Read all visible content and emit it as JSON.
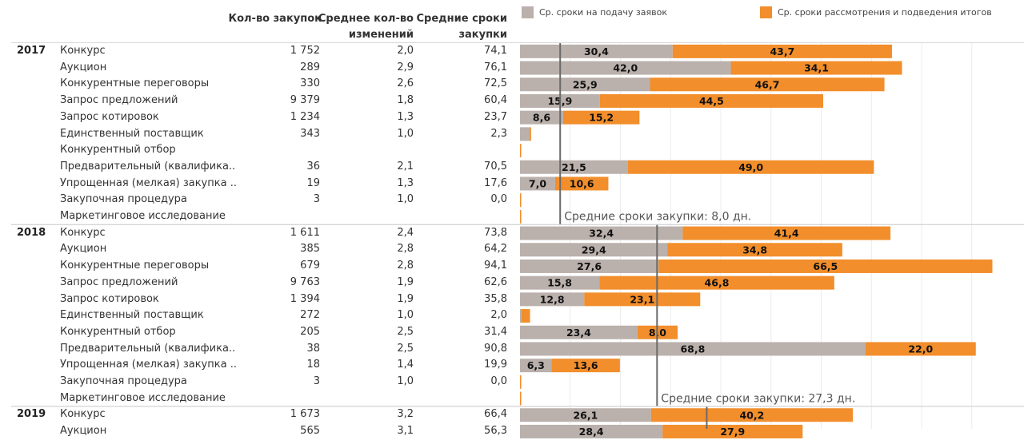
{
  "headers": {
    "count": [
      "Кол-во закупок"
    ],
    "changes": [
      "Среднее кол-во",
      "изменений"
    ],
    "duration": [
      "Средние сроки",
      "закупки"
    ]
  },
  "legend": [
    {
      "label": "Ср. сроки на подачу заявок",
      "color": "#bab0ac"
    },
    {
      "label": "Ср. сроки рассмотрения и подведения итогов",
      "color": "#f28e2b"
    }
  ],
  "chart_data": {
    "type": "bar",
    "orientation": "horizontal",
    "stacked": true,
    "series_names": [
      "Ср. сроки на подачу заявок",
      "Ср. сроки рассмотрения и подведения итогов"
    ],
    "colors": [
      "#bab0ac",
      "#f28e2b"
    ],
    "xlim": [
      0,
      70
    ],
    "groups": [
      {
        "year": "2017",
        "ref": {
          "value": 8.0,
          "label": "Средние сроки закупки: 8,0 дн."
        },
        "rows": [
          {
            "method": "Конкурс",
            "count": "1 752",
            "changes": "2,0",
            "duration": "74,1",
            "submit": 30.4,
            "review": 43.7
          },
          {
            "method": "Аукцион",
            "count": "289",
            "changes": "2,9",
            "duration": "76,1",
            "submit": 42.0,
            "review": 34.1
          },
          {
            "method": "Конкурентные переговоры",
            "count": "330",
            "changes": "2,6",
            "duration": "72,5",
            "submit": 25.9,
            "review": 46.7
          },
          {
            "method": "Запрос предложений",
            "count": "9 379",
            "changes": "1,8",
            "duration": "60,4",
            "submit": 15.9,
            "review": 44.5
          },
          {
            "method": "Запрос котировок",
            "count": "1 234",
            "changes": "1,3",
            "duration": "23,7",
            "submit": 8.6,
            "review": 15.2
          },
          {
            "method": "Единственный поставщик",
            "count": "343",
            "changes": "1,0",
            "duration": "2,3",
            "submit": 1.9,
            "review": 0.3
          },
          {
            "method": "Конкурентный отбор",
            "count": "",
            "changes": "",
            "duration": "",
            "submit": 0,
            "review": 0
          },
          {
            "method": "Предварительный (квалифика..",
            "count": "36",
            "changes": "2,1",
            "duration": "70,5",
            "submit": 21.5,
            "review": 49.0
          },
          {
            "method": "Упрощенная (мелкая) закупка ..",
            "count": "19",
            "changes": "1,3",
            "duration": "17,6",
            "submit": 7.0,
            "review": 10.6
          },
          {
            "method": "Закупочная процедура",
            "count": "3",
            "changes": "1,0",
            "duration": "0,0",
            "submit": 0,
            "review": 0
          },
          {
            "method": "Маркетинговое исследование",
            "count": "",
            "changes": "",
            "duration": "",
            "submit": 0,
            "review": 0
          }
        ]
      },
      {
        "year": "2018",
        "ref": {
          "value": 27.3,
          "label": "Средние сроки закупки: 27,3 дн."
        },
        "rows": [
          {
            "method": "Конкурс",
            "count": "1 611",
            "changes": "2,4",
            "duration": "73,8",
            "submit": 32.4,
            "review": 41.4
          },
          {
            "method": "Аукцион",
            "count": "385",
            "changes": "2,8",
            "duration": "64,2",
            "submit": 29.4,
            "review": 34.8
          },
          {
            "method": "Конкурентные переговоры",
            "count": "679",
            "changes": "2,8",
            "duration": "94,1",
            "submit": 27.6,
            "review": 66.5
          },
          {
            "method": "Запрос предложений",
            "count": "9 763",
            "changes": "1,9",
            "duration": "62,6",
            "submit": 15.8,
            "review": 46.8
          },
          {
            "method": "Запрос котировок",
            "count": "1 394",
            "changes": "1,9",
            "duration": "35,8",
            "submit": 12.8,
            "review": 23.1
          },
          {
            "method": "Единственный поставщик",
            "count": "272",
            "changes": "1,0",
            "duration": "2,0",
            "submit": 0.3,
            "review": 1.7
          },
          {
            "method": "Конкурентный отбор",
            "count": "205",
            "changes": "2,5",
            "duration": "31,4",
            "submit": 23.4,
            "review": 8.0
          },
          {
            "method": "Предварительный (квалифика..",
            "count": "38",
            "changes": "2,5",
            "duration": "90,8",
            "submit": 68.8,
            "review": 22.0
          },
          {
            "method": "Упрощенная (мелкая) закупка ..",
            "count": "18",
            "changes": "1,4",
            "duration": "19,9",
            "submit": 6.3,
            "review": 13.6
          },
          {
            "method": "Закупочная процедура",
            "count": "3",
            "changes": "1,0",
            "duration": "0,0",
            "submit": 0,
            "review": 0
          },
          {
            "method": "Маркетинговое исследование",
            "count": "",
            "changes": "",
            "duration": "",
            "submit": 0,
            "review": 0
          }
        ]
      },
      {
        "year": "2019",
        "ref": {
          "value": 37.2,
          "label": ""
        },
        "rows": [
          {
            "method": "Конкурс",
            "count": "1 673",
            "changes": "3,2",
            "duration": "66,4",
            "submit": 26.1,
            "review": 40.2
          },
          {
            "method": "Аукцион",
            "count": "565",
            "changes": "3,1",
            "duration": "56,3",
            "submit": 28.4,
            "review": 27.9
          }
        ]
      }
    ]
  }
}
